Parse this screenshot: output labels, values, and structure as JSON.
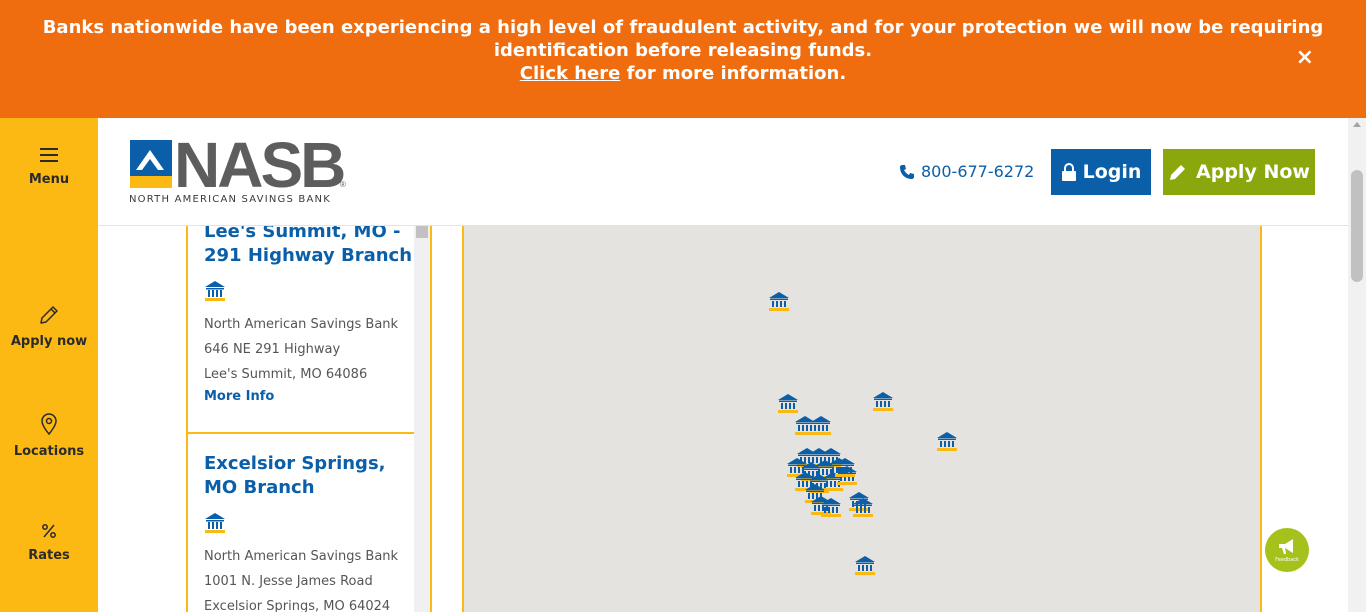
{
  "alert": {
    "line1": "Banks nationwide have been experiencing a high level of fraudulent activity, and for your protection we will now be requiring",
    "line2": "identification before releasing funds.",
    "link_text": "Click here",
    "link_suffix": " for more information.",
    "close_glyph": "×"
  },
  "sidebar": {
    "items": [
      {
        "label": "Menu",
        "icon": "hamburger-icon"
      },
      {
        "label": "Apply now",
        "icon": "pencil-icon"
      },
      {
        "label": "Locations",
        "icon": "map-pin-icon"
      },
      {
        "label": "Rates",
        "icon": "percent-icon"
      }
    ]
  },
  "header": {
    "logo_text": "NASB",
    "logo_reg": "®",
    "logo_sub": "NORTH AMERICAN SAVINGS BANK",
    "phone": "800-677-6272",
    "login_label": "Login",
    "apply_label": "Apply Now"
  },
  "branches": [
    {
      "name": "Lee's Summit, MO - 291 Highway Branch",
      "bank": "North American Savings Bank",
      "street": "646 NE 291 Highway",
      "city": "Lee's Summit, MO 64086",
      "more": "More Info"
    },
    {
      "name": "Excelsior Springs, MO Branch",
      "bank": "North American Savings Bank",
      "street": "1001 N. Jesse James Road",
      "city": "Excelsior Springs, MO 64024"
    }
  ],
  "feedback": {
    "label": "Feedback"
  },
  "colors": {
    "alert_bg": "#ef6c0f",
    "sidebar_bg": "#fdb913",
    "brand_blue": "#0a5fa8",
    "apply_green": "#8aa80d",
    "map_bg": "#e5e3df"
  }
}
